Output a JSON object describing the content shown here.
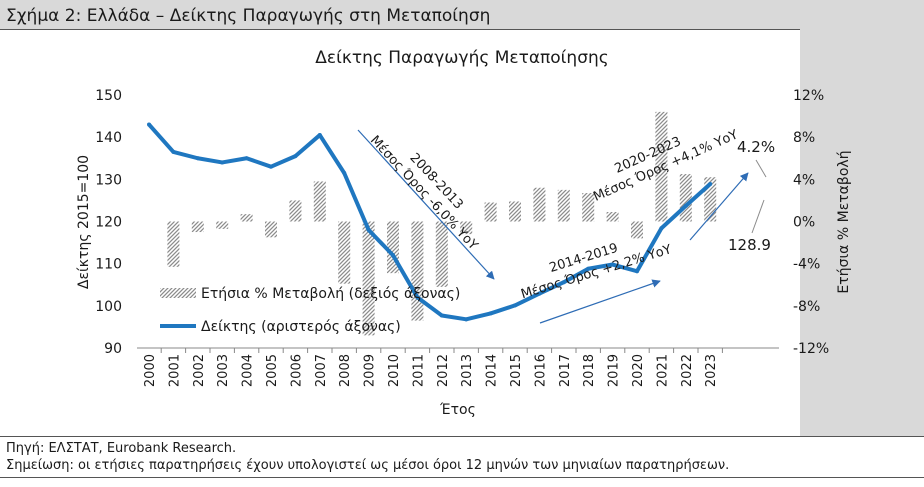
{
  "header": {
    "title": "Σχήμα 2: Ελλάδα – Δείκτης Παραγωγής στη Μεταποίηση"
  },
  "footer": {
    "source": "Πηγή: ΕΛΣΤΑΤ, Eurobank Research.",
    "note": "Σημείωση: οι ετήσιες παρατηρήσεις έχουν υπολογιστεί ως μέσοι όροι 12 μηνών των μηνιαίων παρατηρήσεων."
  },
  "colors": {
    "line": "#1f77c0",
    "bars": "#8c8c8c",
    "arrow": "#2e6cb5",
    "strip": "#d9d9d9"
  },
  "chart_data": {
    "type": "bar+line",
    "title": "Δείκτης Παραγωγής Μεταποίησης",
    "xlabel": "Έτος",
    "ylabel_left": "Δείκτης 2015=100",
    "ylabel_right": "Ετήσια % Μεταβολή",
    "ylim_left": [
      90,
      150
    ],
    "ylim_right": [
      -12,
      12
    ],
    "yticks_left": [
      90,
      100,
      110,
      120,
      130,
      140,
      150
    ],
    "yticks_right": [
      -12,
      -8,
      -4,
      0,
      4,
      8,
      12
    ],
    "yticks_right_labels": [
      "-12%",
      "-8%",
      "-4%",
      "0%",
      "4%",
      "8%",
      "12%"
    ],
    "categories": [
      "2000",
      "2001",
      "2002",
      "2003",
      "2004",
      "2005",
      "2006",
      "2007",
      "2008",
      "2009",
      "2010",
      "2011",
      "2012",
      "2013",
      "2014",
      "2015",
      "2016",
      "2017",
      "2018",
      "2019",
      "2020",
      "2021",
      "2022",
      "2023"
    ],
    "series": [
      {
        "name": "Ετήσια % Μεταβολή (δεξιός άξονας)",
        "kind": "bar",
        "axis": "right",
        "values": [
          null,
          -4.3,
          -1.0,
          -0.7,
          0.7,
          -1.5,
          2.0,
          3.8,
          -5.9,
          -10.8,
          -4.9,
          -9.4,
          -6.2,
          -1.2,
          1.8,
          1.9,
          3.2,
          3.0,
          2.7,
          0.9,
          -1.6,
          10.4,
          4.5,
          4.2
        ]
      },
      {
        "name": "Δείκτης (αριστερός άξονας)",
        "kind": "line",
        "axis": "left",
        "values": [
          143,
          136.5,
          135,
          134,
          135,
          133,
          135.5,
          140.5,
          131.5,
          118,
          112,
          102,
          97.7,
          96.8,
          98.2,
          100.1,
          102.9,
          105.6,
          108.8,
          109.8,
          108.2,
          118.4,
          123.7,
          128.9
        ]
      }
    ],
    "legend_position": "lower-left",
    "annotations": [
      {
        "text_line1": "2008-2013",
        "text_line2": "Μέσος Όρος -6,0% ΥοΥ"
      },
      {
        "text_line1": "2014-2019",
        "text_line2": "Μέσος Όρος +2,2% ΥοΥ"
      },
      {
        "text_line1": "2020-2023",
        "text_line2": "Μέσος Όρος +4,1% ΥοΥ"
      },
      {
        "text": "4.2%"
      },
      {
        "text": "128.9"
      }
    ]
  }
}
